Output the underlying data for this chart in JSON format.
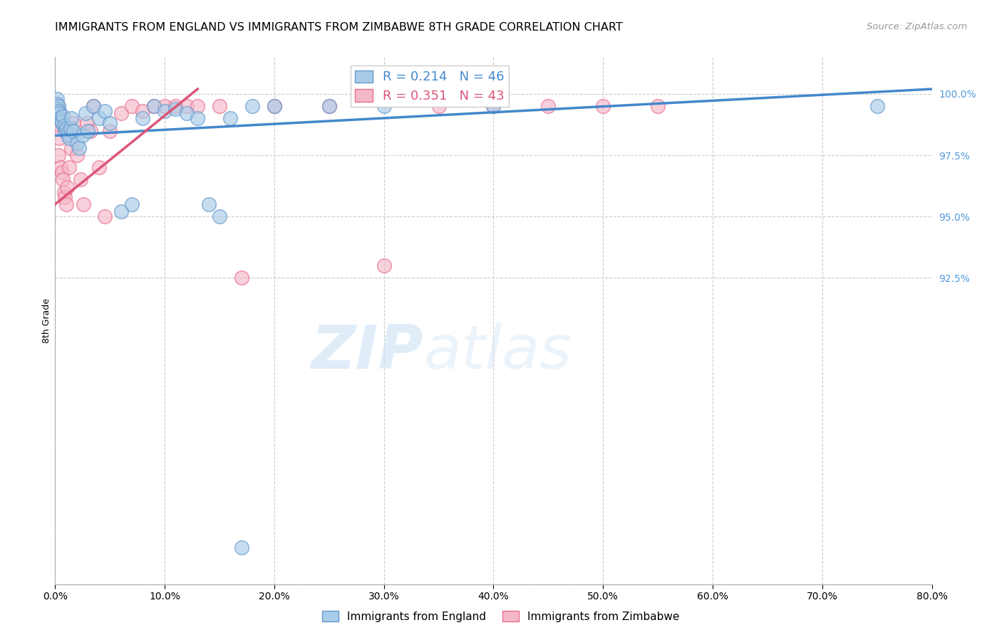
{
  "title": "IMMIGRANTS FROM ENGLAND VS IMMIGRANTS FROM ZIMBABWE 8TH GRADE CORRELATION CHART",
  "source": "Source: ZipAtlas.com",
  "ylabel": "8th Grade",
  "x_tick_labels": [
    "0.0%",
    "10.0%",
    "20.0%",
    "30.0%",
    "40.0%",
    "50.0%",
    "60.0%",
    "70.0%",
    "80.0%"
  ],
  "x_tick_vals": [
    0.0,
    10.0,
    20.0,
    30.0,
    40.0,
    50.0,
    60.0,
    70.0,
    80.0
  ],
  "y_tick_labels_right": [
    "100.0%",
    "97.5%",
    "95.0%",
    "92.5%",
    ""
  ],
  "y_tick_vals_right": [
    100.0,
    97.5,
    95.0,
    92.5,
    80.0
  ],
  "xlim": [
    0.0,
    80.0
  ],
  "ylim": [
    80.0,
    101.5
  ],
  "legend_line1": "R = 0.214   N = 46",
  "legend_line2": "R = 0.351   N = 43",
  "england_color": "#a8cce8",
  "zimbabwe_color": "#f5b8c8",
  "england_edge_color": "#6699cc",
  "zimbabwe_edge_color": "#e87090",
  "england_line_color": "#4488cc",
  "zimbabwe_line_color": "#dd5577",
  "watermark_zip": "ZIP",
  "watermark_atlas": "atlas",
  "grid_color": "#cccccc",
  "background_color": "#ffffff",
  "title_fontsize": 11.5,
  "source_fontsize": 9.5,
  "axis_label_fontsize": 9,
  "tick_fontsize": 10,
  "legend_fontsize": 12,
  "england_scatter_x": [
    0.15,
    0.2,
    0.25,
    0.3,
    0.35,
    0.4,
    0.5,
    0.55,
    0.6,
    0.7,
    0.8,
    0.9,
    1.0,
    1.1,
    1.2,
    1.3,
    1.4,
    1.5,
    1.7,
    2.0,
    2.2,
    2.5,
    2.8,
    3.0,
    3.5,
    4.0,
    4.5,
    5.0,
    6.0,
    7.0,
    8.0,
    9.0,
    10.0,
    11.0,
    12.0,
    13.0,
    14.0,
    15.0,
    16.0,
    17.0,
    18.0,
    20.0,
    25.0,
    30.0,
    40.0,
    75.0
  ],
  "england_scatter_y": [
    99.8,
    99.6,
    99.4,
    99.5,
    99.3,
    99.2,
    99.0,
    98.9,
    98.8,
    99.1,
    98.7,
    98.5,
    98.6,
    98.4,
    98.3,
    98.2,
    98.6,
    99.0,
    98.5,
    98.0,
    97.8,
    98.3,
    99.2,
    98.5,
    99.5,
    99.0,
    99.3,
    98.8,
    95.2,
    95.5,
    99.0,
    99.5,
    99.3,
    99.4,
    99.2,
    99.0,
    95.5,
    95.0,
    99.0,
    81.5,
    99.5,
    99.5,
    99.5,
    99.5,
    99.5,
    99.5
  ],
  "zimbabwe_scatter_x": [
    0.1,
    0.2,
    0.25,
    0.3,
    0.4,
    0.5,
    0.6,
    0.7,
    0.8,
    0.9,
    1.0,
    1.1,
    1.2,
    1.3,
    1.5,
    1.7,
    2.0,
    2.3,
    2.6,
    2.9,
    3.2,
    3.5,
    4.0,
    4.5,
    5.0,
    6.0,
    7.0,
    8.0,
    9.0,
    10.0,
    11.0,
    12.0,
    13.0,
    15.0,
    17.0,
    20.0,
    25.0,
    30.0,
    35.0,
    40.0,
    45.0,
    50.0,
    55.0
  ],
  "zimbabwe_scatter_y": [
    99.5,
    98.8,
    99.2,
    97.5,
    98.2,
    97.0,
    96.8,
    96.5,
    96.0,
    95.8,
    95.5,
    96.2,
    98.3,
    97.0,
    97.8,
    98.8,
    97.5,
    96.5,
    95.5,
    98.8,
    98.5,
    99.5,
    97.0,
    95.0,
    98.5,
    99.2,
    99.5,
    99.3,
    99.5,
    99.5,
    99.5,
    99.5,
    99.5,
    99.5,
    92.5,
    99.5,
    99.5,
    93.0,
    99.5,
    99.5,
    99.5,
    99.5,
    99.5
  ],
  "england_line_x0": 0.0,
  "england_line_x1": 80.0,
  "england_line_y0": 98.3,
  "england_line_y1": 100.2,
  "zimbabwe_line_x0": 0.0,
  "zimbabwe_line_x1": 13.0,
  "zimbabwe_line_y0": 95.5,
  "zimbabwe_line_y1": 100.2
}
